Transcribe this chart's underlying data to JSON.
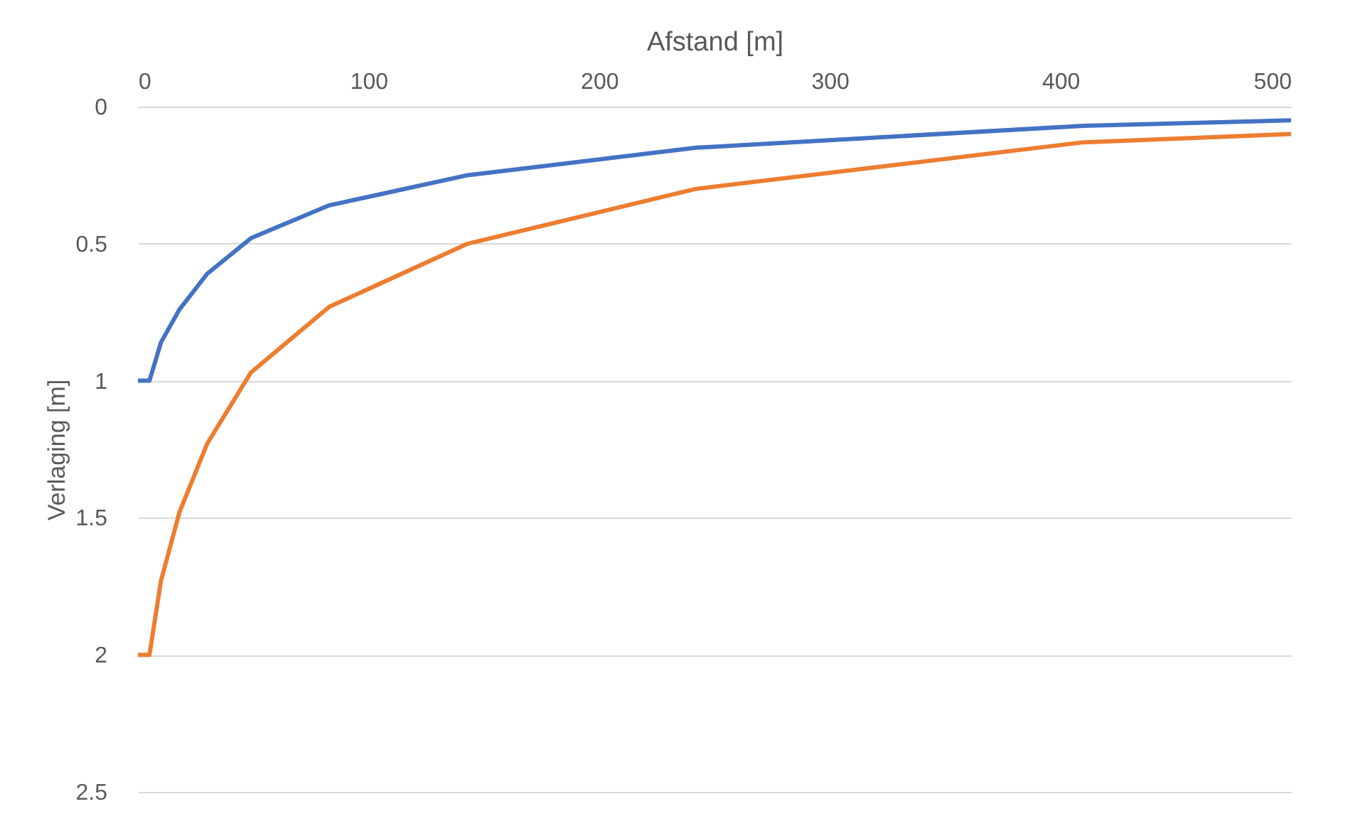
{
  "chart_data": {
    "type": "line",
    "xlabel": "Afstand [m]",
    "ylabel": "Verlaging [m]",
    "x": [
      0,
      5,
      10,
      18,
      30,
      49,
      83,
      143,
      242,
      410,
      500
    ],
    "series": [
      {
        "color": "#4472c4",
        "values": [
          1,
          1,
          0.86,
          0.74,
          0.61,
          0.48,
          0.36,
          0.25,
          0.15,
          0.07,
          0.05
        ]
      },
      {
        "color": "#ed7d31",
        "values": [
          2,
          2,
          1.73,
          1.48,
          1.23,
          0.97,
          0.73,
          0.5,
          0.3,
          0.13,
          0.1
        ]
      }
    ],
    "xlim": [
      0,
      500
    ],
    "xticks": [
      0,
      100,
      200,
      300,
      400,
      500
    ],
    "ylim": [
      2.5,
      0
    ],
    "yticks": [
      0,
      0.5,
      1,
      1.5,
      2,
      2.5
    ],
    "grid": "y",
    "legend": false,
    "marker": "none",
    "line_style": "solid"
  }
}
